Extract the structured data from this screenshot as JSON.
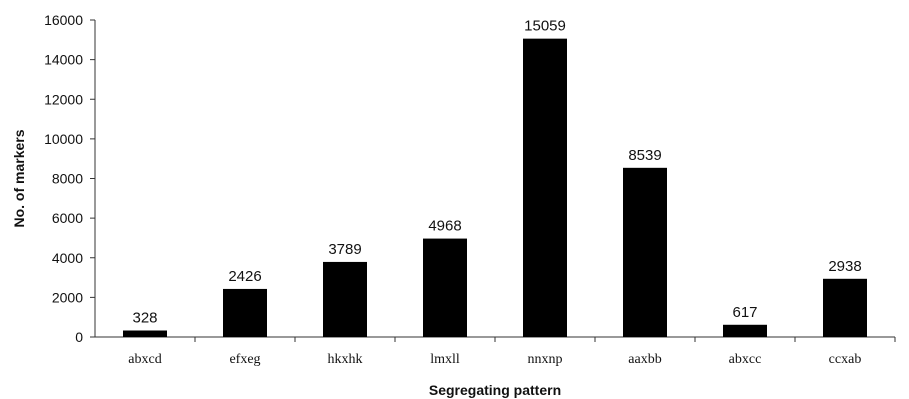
{
  "chart_data": {
    "type": "bar",
    "categories": [
      "abxcd",
      "efxeg",
      "hkxhk",
      "lmxll",
      "nnxnp",
      "aaxbb",
      "abxcc",
      "ccxab"
    ],
    "values": [
      328,
      2426,
      3789,
      4968,
      15059,
      8539,
      617,
      2938
    ],
    "data_labels": [
      "328",
      "2426",
      "3789",
      "4968",
      "15059",
      "8539",
      "617",
      "2938"
    ],
    "xlabel": "Segregating pattern",
    "ylabel": "No. of markers",
    "ylim": [
      0,
      16000
    ],
    "yticks": [
      0,
      2000,
      4000,
      6000,
      8000,
      10000,
      12000,
      14000,
      16000
    ],
    "grid": false,
    "legend": "none",
    "bar_color": "#000000"
  }
}
